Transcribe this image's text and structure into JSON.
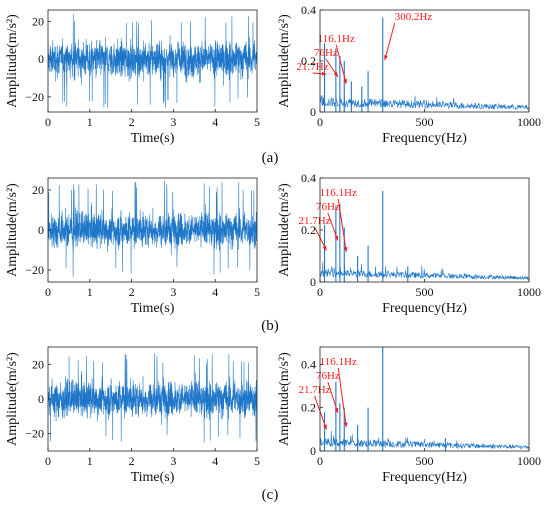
{
  "panel_labels": [
    "(a)",
    "(b)",
    "(c)"
  ],
  "colors": {
    "signal": "#1f77c9",
    "annotation": "#ff1a1a",
    "axis": "#222222"
  },
  "chart_data": [
    {
      "type": "line",
      "panel": "(a)",
      "xlabel": "Time(s)",
      "ylabel": "Amplitude(m/s²)",
      "xlim": [
        0,
        5
      ],
      "ylim": [
        -28,
        26
      ],
      "xticks": [
        0,
        1,
        2,
        3,
        4,
        5
      ],
      "yticks": [
        -20,
        0,
        20
      ],
      "signal": {
        "amplitude_band": [
          -12,
          12
        ],
        "peak_extent": [
          -26,
          24
        ]
      }
    },
    {
      "type": "line",
      "panel": "(a)",
      "xlabel": "Frequency(Hz)",
      "ylabel": "Amplitude(m/s²)",
      "xlim": [
        0,
        1000
      ],
      "ylim": [
        0,
        0.4
      ],
      "xticks": [
        0,
        500,
        1000
      ],
      "yticks": [
        0,
        0.2,
        0.4
      ],
      "peaks": [
        {
          "x": 21.7,
          "y": 0.27
        },
        {
          "x": 76,
          "y": 0.25
        },
        {
          "x": 95,
          "y": 0.22
        },
        {
          "x": 116.1,
          "y": 0.2
        },
        {
          "x": 150,
          "y": 0.12
        },
        {
          "x": 230,
          "y": 0.16
        },
        {
          "x": 300.2,
          "y": 0.37
        },
        {
          "x": 200,
          "y": 0.1
        }
      ],
      "noise_floor": [
        0.02,
        0.06
      ],
      "annotations": [
        {
          "text": "21.7Hz",
          "x": 21.7
        },
        {
          "text": "76Hz",
          "x": 76
        },
        {
          "text": "116.1Hz",
          "x": 116.1
        },
        {
          "text": "300.2Hz",
          "x": 300.2
        }
      ]
    },
    {
      "type": "line",
      "panel": "(b)",
      "xlabel": "Time(s)",
      "ylabel": "Amplitude(m/s²)",
      "xlim": [
        0,
        5
      ],
      "ylim": [
        -26,
        26
      ],
      "xticks": [
        0,
        1,
        2,
        3,
        4,
        5
      ],
      "yticks": [
        -20,
        0,
        20
      ],
      "signal": {
        "amplitude_band": [
          -11,
          11
        ],
        "peak_extent": [
          -24,
          25
        ]
      }
    },
    {
      "type": "line",
      "panel": "(b)",
      "xlabel": "Frequency(Hz)",
      "ylabel": "Amplitude(m/s²)",
      "xlim": [
        0,
        1000
      ],
      "ylim": [
        0,
        0.4
      ],
      "xticks": [
        0,
        500,
        1000
      ],
      "yticks": [
        0,
        0.2,
        0.4
      ],
      "peaks": [
        {
          "x": 21.7,
          "y": 0.22
        },
        {
          "x": 76,
          "y": 0.29
        },
        {
          "x": 95,
          "y": 0.3
        },
        {
          "x": 116.1,
          "y": 0.21
        },
        {
          "x": 180,
          "y": 0.1
        },
        {
          "x": 230,
          "y": 0.14
        },
        {
          "x": 300.2,
          "y": 0.35
        },
        {
          "x": 420,
          "y": 0.06
        }
      ],
      "noise_floor": [
        0.02,
        0.05
      ],
      "annotations": [
        {
          "text": "21.7Hz",
          "x": 21.7
        },
        {
          "text": "76Hz",
          "x": 76
        },
        {
          "text": "116.1Hz",
          "x": 116.1
        }
      ]
    },
    {
      "type": "line",
      "panel": "(c)",
      "xlabel": "Time(s)",
      "ylabel": "Amplitude(m/s²)",
      "xlim": [
        0,
        5
      ],
      "ylim": [
        -30,
        30
      ],
      "xticks": [
        0,
        1,
        2,
        3,
        4,
        5
      ],
      "yticks": [
        -20,
        0,
        20
      ],
      "signal": {
        "amplitude_band": [
          -13,
          13
        ],
        "peak_extent": [
          -27,
          27
        ]
      }
    },
    {
      "type": "line",
      "panel": "(c)",
      "xlabel": "Frequency(Hz)",
      "ylabel": "Amplitude(m/s²)",
      "xlim": [
        0,
        1000
      ],
      "ylim": [
        0,
        0.48
      ],
      "xticks": [
        0,
        500,
        1000
      ],
      "yticks": [
        0,
        0.2,
        0.4
      ],
      "peaks": [
        {
          "x": 21.7,
          "y": 0.18
        },
        {
          "x": 76,
          "y": 0.32
        },
        {
          "x": 95,
          "y": 0.22
        },
        {
          "x": 116.1,
          "y": 0.2
        },
        {
          "x": 180,
          "y": 0.12
        },
        {
          "x": 230,
          "y": 0.2
        },
        {
          "x": 300.2,
          "y": 0.48
        },
        {
          "x": 600,
          "y": 0.06
        }
      ],
      "noise_floor": [
        0.02,
        0.06
      ],
      "annotations": [
        {
          "text": "21.7Hz",
          "x": 21.7
        },
        {
          "text": "76Hz",
          "x": 76
        },
        {
          "text": "116.1Hz",
          "x": 116.1
        }
      ]
    }
  ]
}
